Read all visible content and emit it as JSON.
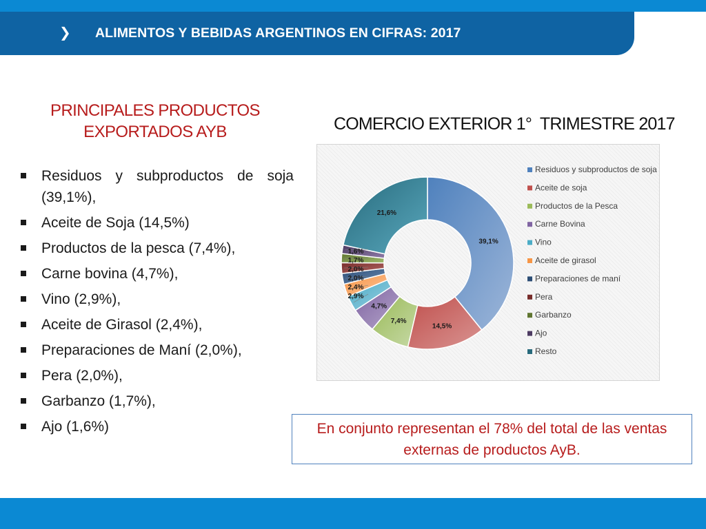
{
  "header": {
    "chevron": "❯",
    "title": "ALIMENTOS Y BEBIDAS ARGENTINOS EN CIFRAS: 2017"
  },
  "left": {
    "title_line1": "PRINCIPALES PRODUCTOS",
    "title_line2": "EXPORTADOS AYB",
    "bullets": [
      "Residuos y subproductos de soja (39,1%),",
      "Aceite de Soja (14,5%)",
      "Productos de la pesca (7,4%),",
      "Carne bovina (4,7%),",
      "Vino (2,9%),",
      "Aceite de Girasol (2,4%),",
      "Preparaciones de Maní  (2,0%),",
      "Pera  (2,0%),",
      "Garbanzo (1,7%),",
      "Ajo (1,6%)"
    ]
  },
  "right": {
    "title": "COMERCIO EXTERIOR 1°  TRIMESTRE 2017"
  },
  "summary": {
    "text": "En conjunto representan el 78% del total de las ventas externas de productos AyB."
  },
  "colors": {
    "header_band": "#0f63a3",
    "accent_blue": "#0b89d3",
    "title_red": "#b71c1c"
  },
  "chart_data": {
    "type": "pie",
    "subtype": "donut",
    "title": "",
    "legend_position": "right",
    "categories": [
      "Residuos y subproductos de soja",
      "Aceite de soja",
      "Productos de la Pesca",
      "Carne Bovina",
      "Vino",
      "Aceite de girasol",
      "Preparaciones de maní",
      "Pera",
      "Garbanzo",
      "Ajo",
      "Resto"
    ],
    "values": [
      39.1,
      14.5,
      7.4,
      4.7,
      2.9,
      2.4,
      2.0,
      2.0,
      1.7,
      1.6,
      21.6
    ],
    "labels": [
      "39,1%",
      "14,5%",
      "7,4%",
      "4,7%",
      "2,9%",
      "2,4%",
      "2,0%",
      "2,0%",
      "1,7%",
      "1,6%",
      "21,6%"
    ],
    "colors": [
      "#4f81bd",
      "#c0504d",
      "#9bbb59",
      "#8064a2",
      "#4bacc6",
      "#f79646",
      "#2c4d75",
      "#772c2a",
      "#5f7530",
      "#4d3b62",
      "#276a7c"
    ],
    "light_colors": [
      "#9db6d9",
      "#d99492",
      "#c6d9a6",
      "#b3a4c9",
      "#97cde0",
      "#fbc196",
      "#6a8ab2",
      "#b56865",
      "#a1bd6f",
      "#8f7ba8",
      "#5aa8bd"
    ]
  }
}
